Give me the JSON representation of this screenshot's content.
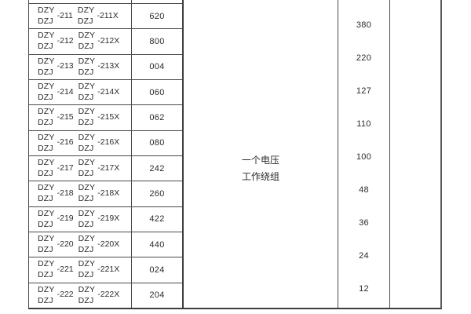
{
  "table": {
    "prefix_top": "DZY",
    "prefix_bottom": "DZJ",
    "rows": [
      {
        "base": "-211",
        "variant": "-211X",
        "code": "620"
      },
      {
        "base": "-212",
        "variant": "-212X",
        "code": "800"
      },
      {
        "base": "-213",
        "variant": "-213X",
        "code": "004"
      },
      {
        "base": "-214",
        "variant": "-214X",
        "code": "060"
      },
      {
        "base": "-215",
        "variant": "-215X",
        "code": "062"
      },
      {
        "base": "-216",
        "variant": "-216X",
        "code": "080"
      },
      {
        "base": "-217",
        "variant": "-217X",
        "code": "242"
      },
      {
        "base": "-218",
        "variant": "-218X",
        "code": "260"
      },
      {
        "base": "-219",
        "variant": "-219X",
        "code": "422"
      },
      {
        "base": "-220",
        "variant": "-220X",
        "code": "440"
      },
      {
        "base": "-221",
        "variant": "-221X",
        "code": "024"
      },
      {
        "base": "-222",
        "variant": "-222X",
        "code": "204"
      }
    ],
    "winding_label": {
      "line1": "一个电压",
      "line2": "工作绕组"
    },
    "voltages": [
      "380",
      "220",
      "127",
      "110",
      "100",
      "48",
      "36",
      "24",
      "12"
    ]
  },
  "colors": {
    "border": "#4a4a4a",
    "text": "#2b2b2b",
    "background": "#ffffff"
  }
}
